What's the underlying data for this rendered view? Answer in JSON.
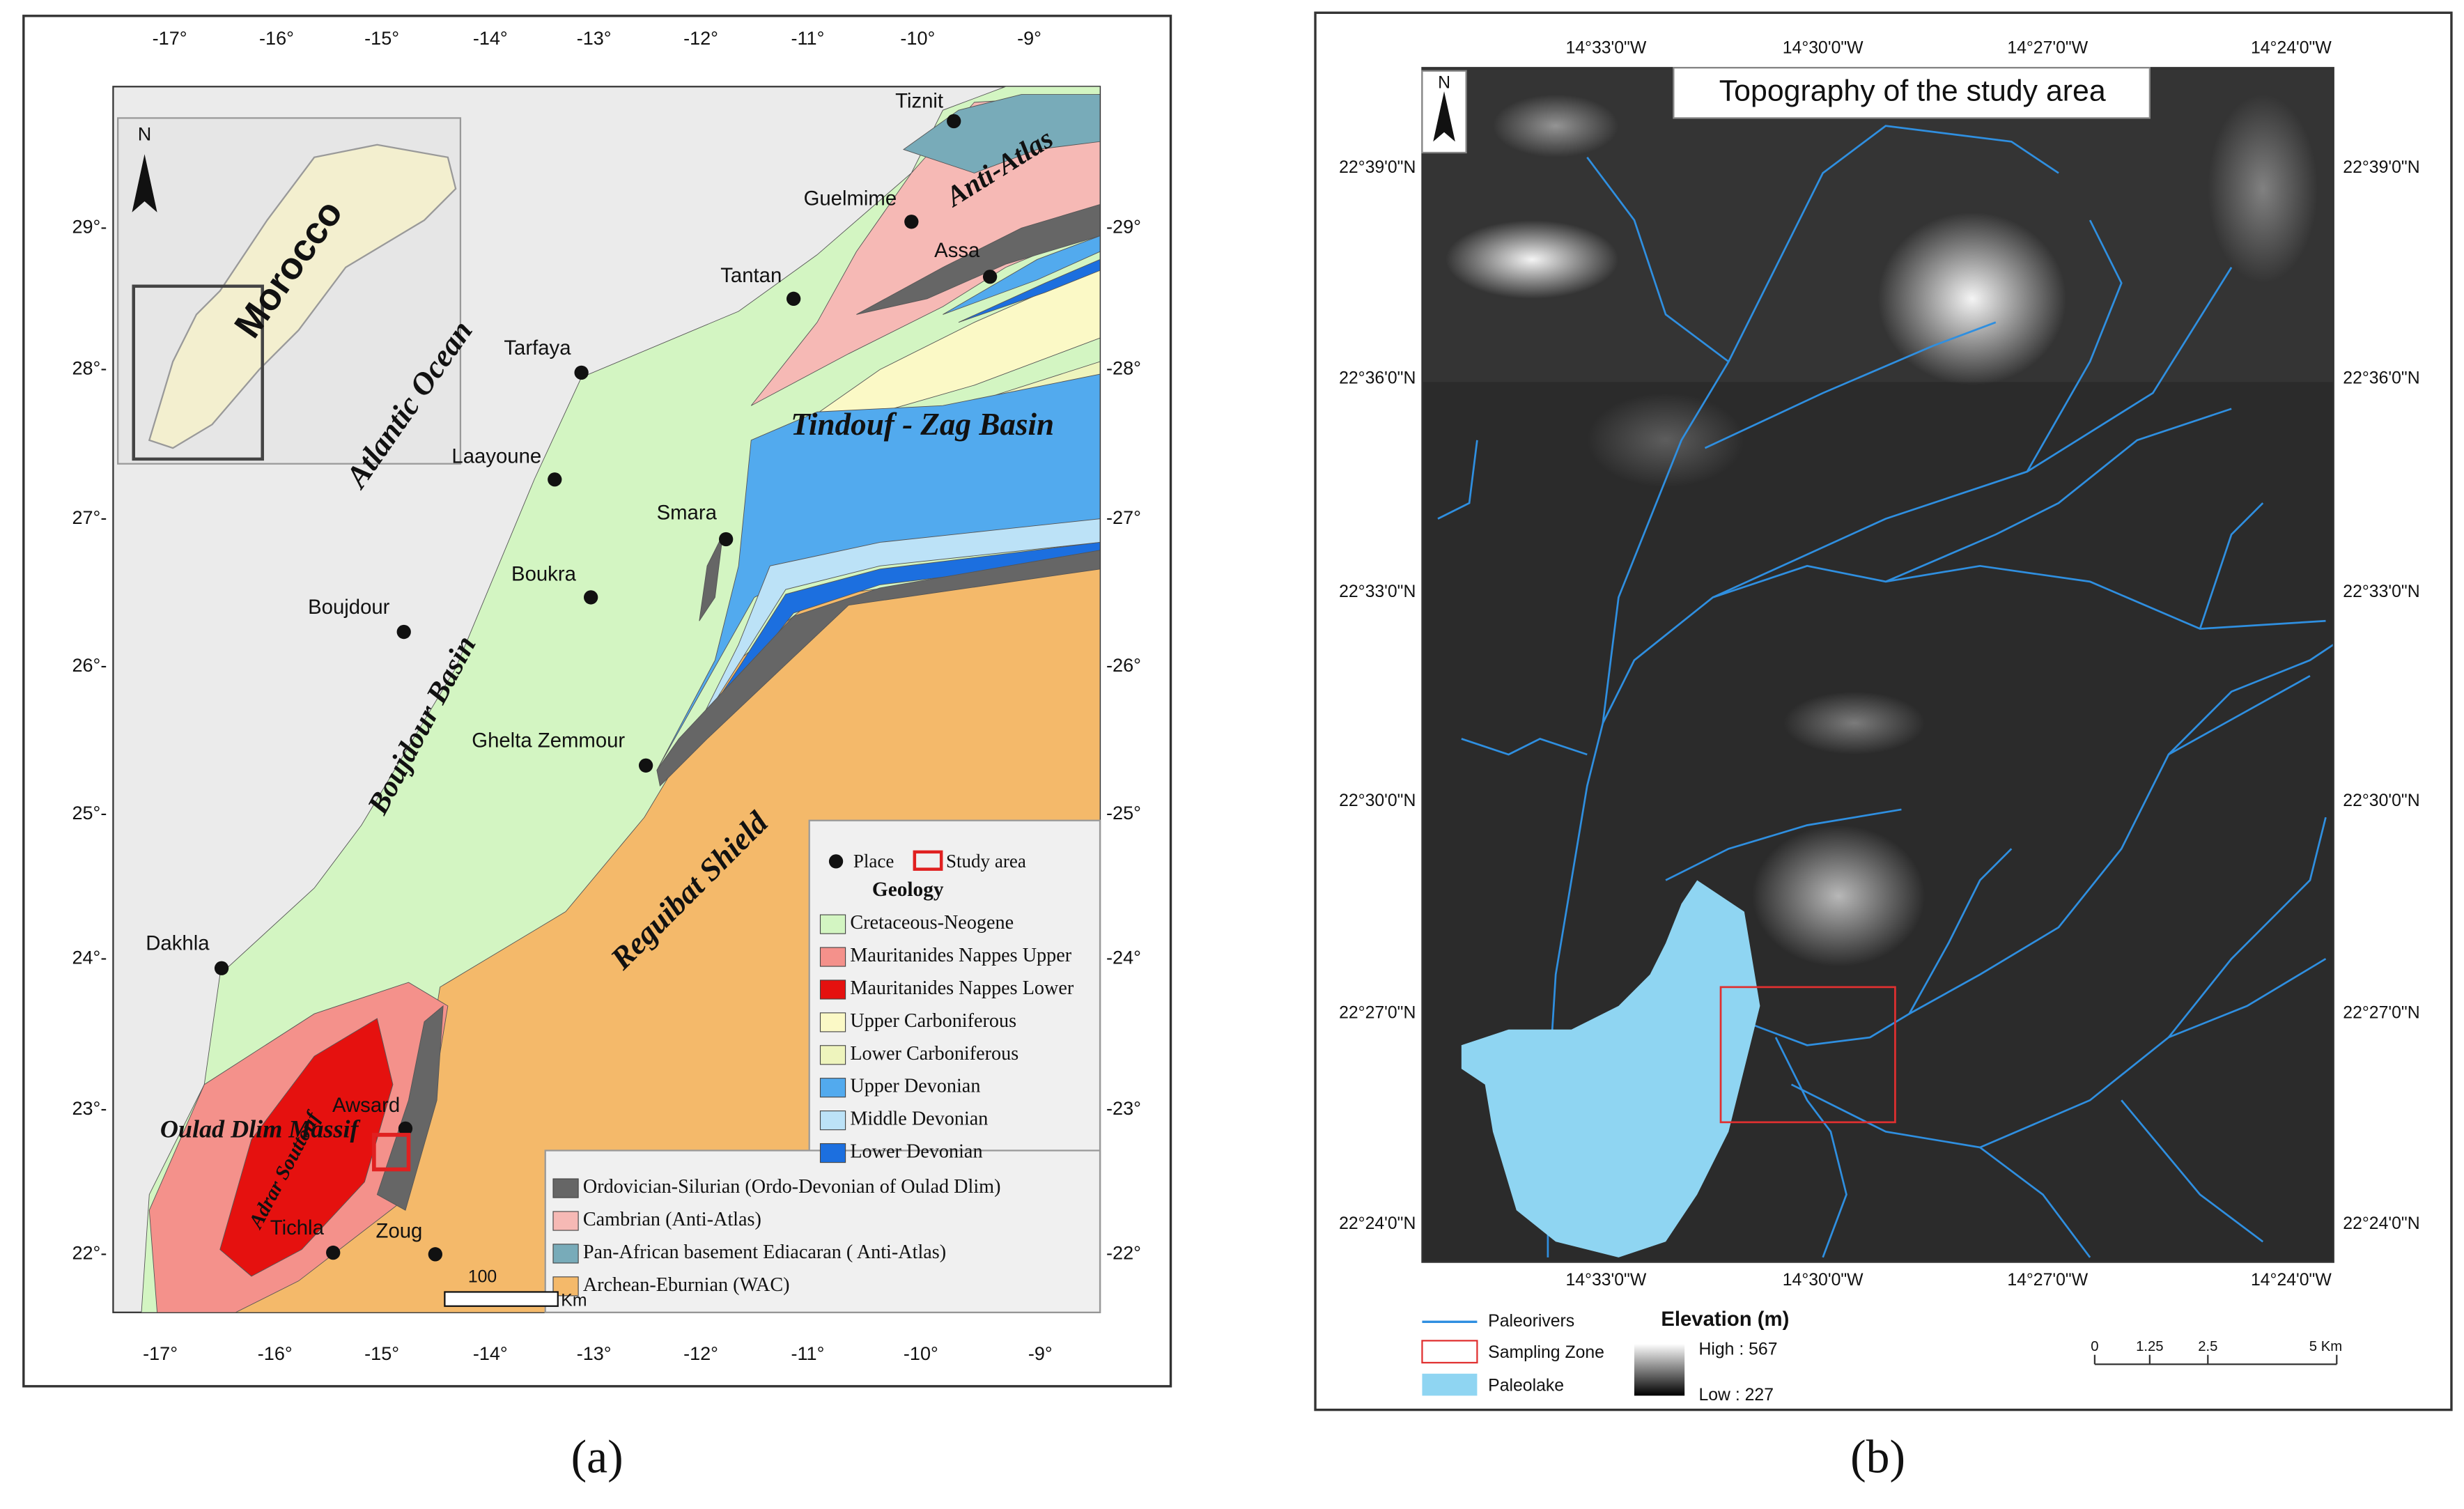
{
  "panel_a": {
    "lon_ticks": [
      "-17°",
      "-16°",
      "-15°",
      "-14°",
      "-13°",
      "-12°",
      "-11°",
      "-10°",
      "-9°"
    ],
    "lat_ticks_left": [
      "29°-",
      "28°-",
      "27°-",
      "26°-",
      "25°-",
      "24°-",
      "23°-",
      "22°-"
    ],
    "lat_ticks_right": [
      "-29°",
      "-28°",
      "-27°",
      "-26°",
      "-25°",
      "-24°",
      "-23°",
      "-22°"
    ],
    "places": [
      "Tiznit",
      "Guelmime",
      "Assa",
      "Tantan",
      "Tarfaya",
      "Laayoune",
      "Smara",
      "Boukra",
      "Boujdour",
      "Ghelta Zemmour",
      "Dakhla",
      "Awsard",
      "Tichla",
      "Zoug"
    ],
    "regions": [
      "Anti-Atlas",
      "Atlantic Ocean",
      "Tindouf - Zag Basin",
      "Boujdour Basin",
      "Reguibat Shield",
      "Oulad Dlim Massif",
      "Adrar Souttouf"
    ],
    "inset": {
      "north": "N",
      "country": "Morocco"
    },
    "legend": {
      "place": "Place",
      "study_area": "Study area",
      "geology": "Geology",
      "items": [
        {
          "label": "Cretaceous-Neogene",
          "color": "#d3f5c2"
        },
        {
          "label": "Mauritanides Nappes Upper",
          "color": "#f4918b"
        },
        {
          "label": "Mauritanides Nappes Lower",
          "color": "#e5110f"
        },
        {
          "label": "Upper  Carboniferous",
          "color": "#fbf9c6"
        },
        {
          "label": "Lower Carboniferous",
          "color": "#eef4bd"
        },
        {
          "label": "Upper Devonian",
          "color": "#52aaee"
        },
        {
          "label": "Middle Devonian",
          "color": "#bce2f7"
        },
        {
          "label": "Lower Devonian",
          "color": "#1c6fdf"
        },
        {
          "label": "Ordovician-Silurian (Ordo-Devonian of Oulad Dlim)",
          "color": "#666666"
        },
        {
          "label": "Cambrian (Anti-Atlas)",
          "color": "#f6b9b5"
        },
        {
          "label": "Pan-African basement Ediacaran ( Anti-Atlas)",
          "color": "#78abb9"
        },
        {
          "label": "Archean-Eburnian (WAC)",
          "color": "#f4b96a"
        }
      ]
    },
    "scale": {
      "value": "100",
      "unit": "Km"
    },
    "caption": "(a)"
  },
  "panel_b": {
    "title": "Topography of the study area",
    "north": "N",
    "lon_ticks": [
      "14°33'0\"W",
      "14°30'0\"W",
      "14°27'0\"W",
      "14°24'0\"W"
    ],
    "lat_ticks_left": [
      "22°39'0\"N",
      "22°36'0\"N",
      "22°33'0\"N",
      "22°30'0\"N",
      "22°27'0\"N",
      "22°24'0\"N"
    ],
    "lat_ticks_right": [
      "22°39'0\"N",
      "22°36'0\"N",
      "22°33'0\"N",
      "22°30'0\"N",
      "22°27'0\"N",
      "22°24'0\"N"
    ],
    "legend": {
      "paleorivers": "Paleorivers",
      "sampling_zone": "Sampling  Zone",
      "paleolake": "Paleolake",
      "elevation": "Elevation (m)",
      "high": "High : 567",
      "low": "Low : 227"
    },
    "scale": [
      "0",
      "1.25",
      "2.5",
      "5 Km"
    ],
    "caption": "(b)"
  }
}
